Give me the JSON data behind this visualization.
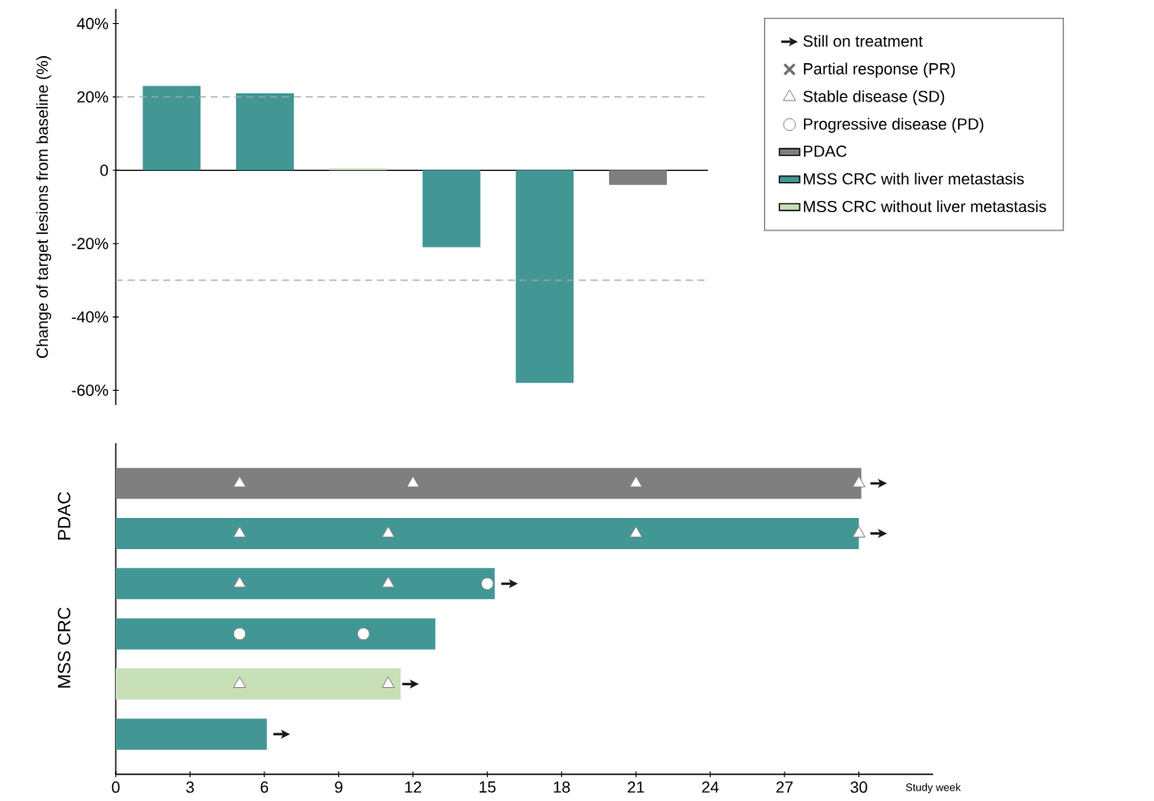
{
  "chart_data": [
    {
      "type": "bar",
      "categories": [
        null,
        null,
        null,
        null,
        null,
        null
      ],
      "values": [
        23,
        21,
        0.5,
        -21,
        -58,
        -4
      ],
      "colors": [
        "#429795",
        "#429795",
        "#c8e0b8",
        "#429795",
        "#429795",
        "#7f7f7f"
      ],
      "ylabel": "Change of target lesions from baseline (%)",
      "ylim": [
        -64,
        44
      ],
      "yticks": [
        {
          "value": -60,
          "label": "-60%"
        },
        {
          "value": -40,
          "label": "-40%"
        },
        {
          "value": -20,
          "label": "-20%"
        },
        0,
        {
          "value": 20,
          "label": "20%"
        },
        {
          "value": 40,
          "label": "40%"
        }
      ],
      "ref_lines": [
        {
          "axis": "y",
          "value": 20,
          "color": "#a6a6a6",
          "line_style": "dashed"
        },
        {
          "axis": "y",
          "value": -30,
          "color": "#a6a6a6",
          "line_style": "dashed"
        }
      ],
      "tick_labels": "y"
    },
    {
      "type": "bar",
      "orientation": "horizontal",
      "categories": [
        null,
        null,
        null,
        null,
        null,
        null
      ],
      "series": [
        {
          "name": "Still on treatment",
          "type": "scatter",
          "color": "#1a1a1a",
          "values": [
            30.8,
            30.8,
            15.9,
            null,
            11.9,
            6.7
          ]
        },
        {
          "name": "Partial response (PR)",
          "type": "scatter",
          "marker": "cross",
          "color": "#6f6f6f",
          "values": [
            null,
            null,
            null,
            null,
            null,
            null
          ]
        },
        {
          "name": "Stable disease (SD)",
          "type": "scatter",
          "marker": "triangle",
          "color": "#ffffff",
          "values": [
            5,
            5,
            5,
            null,
            5,
            null
          ]
        },
        {
          "type": "scatter",
          "marker": "triangle",
          "color": "#ffffff",
          "values": [
            12,
            11,
            11,
            null,
            11,
            null
          ]
        },
        {
          "type": "scatter",
          "marker": "triangle",
          "color": "#ffffff",
          "values": [
            21,
            21,
            null,
            null,
            null,
            null
          ]
        },
        {
          "type": "scatter",
          "marker": "triangle",
          "color": "#ffffff",
          "values": [
            30,
            30,
            null,
            null,
            null,
            null
          ]
        },
        {
          "name": "Progressive disease (PD)",
          "type": "scatter",
          "marker": "circle",
          "color": "#ffffff",
          "values": [
            null,
            null,
            15,
            5,
            null,
            null
          ]
        },
        {
          "type": "scatter",
          "marker": "circle",
          "color": "#ffffff",
          "values": [
            null,
            null,
            null,
            10,
            null,
            null
          ]
        },
        {
          "name": "PDAC",
          "type": "bar",
          "color": "#7f7f7f",
          "values": [
            30.1,
            null,
            null,
            null,
            null,
            null
          ]
        },
        {
          "name": "MSS CRC with liver metastasis",
          "type": "bar",
          "color": "#429795",
          "values": [
            null,
            30,
            15.3,
            12.9,
            null,
            6.1
          ]
        },
        {
          "name": "MSS CRC without liver metastasis",
          "type": "bar",
          "color": "#c8e0b8",
          "values": [
            null,
            null,
            null,
            null,
            11.5,
            null
          ]
        }
      ],
      "xlabel": "Study week",
      "xlim": [
        0,
        33
      ],
      "xticks": [
        0,
        3,
        6,
        9,
        12,
        15,
        18,
        21,
        24,
        27,
        30
      ],
      "annotations": [
        "PDAC",
        "MSS CRC"
      ],
      "legend": "top right",
      "tick_labels": "x"
    }
  ]
}
